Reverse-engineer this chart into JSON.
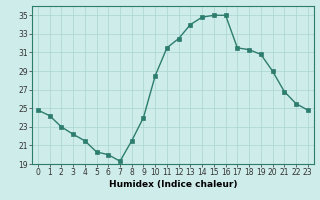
{
  "x": [
    0,
    1,
    2,
    3,
    4,
    5,
    6,
    7,
    8,
    9,
    10,
    11,
    12,
    13,
    14,
    15,
    16,
    17,
    18,
    19,
    20,
    21,
    22,
    23
  ],
  "y": [
    24.8,
    24.2,
    23.0,
    22.2,
    21.5,
    20.3,
    20.0,
    19.3,
    21.5,
    24.0,
    28.5,
    31.5,
    32.5,
    34.0,
    34.8,
    35.0,
    35.0,
    31.5,
    31.3,
    30.8,
    29.0,
    26.8,
    25.5,
    24.8
  ],
  "line_color": "#2d7d6e",
  "marker": "s",
  "marker_size": 2.2,
  "bg_color": "#ceecea",
  "grid_color": "#aad4d0",
  "xlabel": "Humidex (Indice chaleur)",
  "ylim": [
    19,
    36
  ],
  "xlim": [
    -0.5,
    23.5
  ],
  "yticks": [
    19,
    21,
    23,
    25,
    27,
    29,
    31,
    33,
    35
  ],
  "xticks": [
    0,
    1,
    2,
    3,
    4,
    5,
    6,
    7,
    8,
    9,
    10,
    11,
    12,
    13,
    14,
    15,
    16,
    17,
    18,
    19,
    20,
    21,
    22,
    23
  ],
  "tick_label_size": 5.5,
  "xlabel_size": 6.5,
  "linewidth": 1.0
}
